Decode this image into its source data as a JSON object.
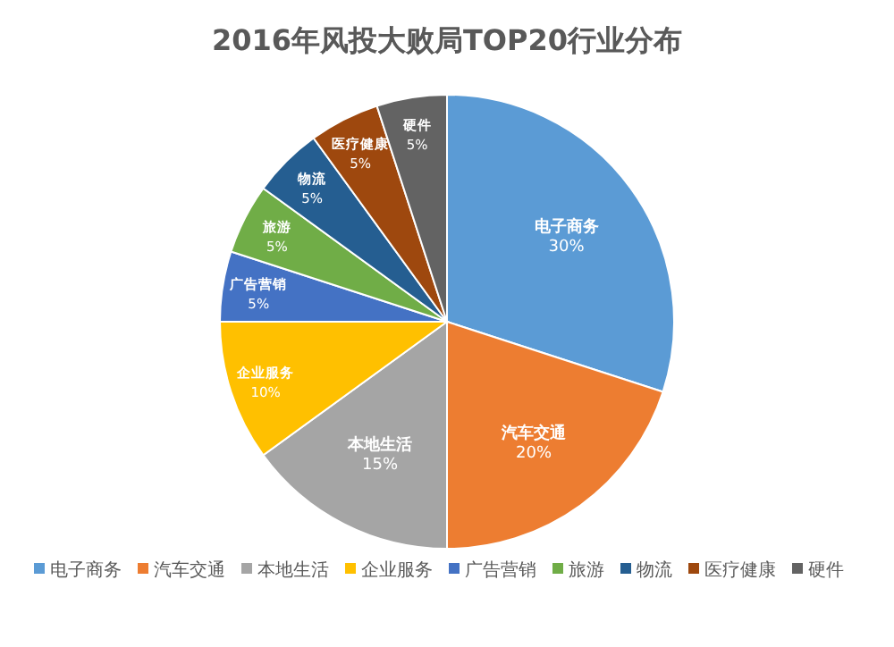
{
  "chart_data": {
    "type": "pie",
    "title": "2016年风投大败局TOP20行业分布",
    "categories": [
      "电子商务",
      "汽车交通",
      "本地生活",
      "企业服务",
      "广告营销",
      "旅游",
      "物流",
      "医疗健康",
      "硬件"
    ],
    "values": [
      30,
      20,
      15,
      10,
      5,
      5,
      5,
      5,
      5
    ],
    "colors": [
      "#5b9bd5",
      "#ed7d31",
      "#a5a5a5",
      "#ffc000",
      "#4472c4",
      "#70ad47",
      "#255e91",
      "#9e480e",
      "#636363"
    ],
    "value_labels": [
      "30%",
      "20%",
      "15%",
      "10%",
      "5%",
      "5%",
      "5%",
      "5%",
      "5%"
    ],
    "legend": "bottom"
  }
}
